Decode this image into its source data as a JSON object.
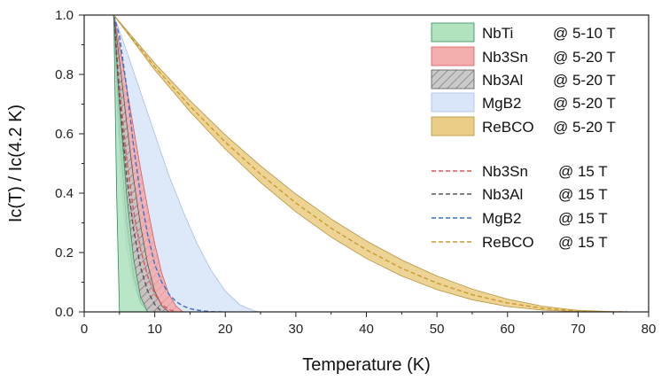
{
  "chart_data": {
    "type": "area",
    "xlabel": "Temperature (K)",
    "ylabel": "Ic(T) / Ic(4.2 K)",
    "xlim": [
      0,
      80
    ],
    "ylim": [
      0,
      1.0
    ],
    "x_ticks": [
      0,
      10,
      20,
      30,
      40,
      50,
      60,
      70,
      80
    ],
    "y_ticks": [
      0.0,
      0.2,
      0.4,
      0.6,
      0.8,
      1.0
    ],
    "grid": false,
    "legend_position": "top-right",
    "bands": [
      {
        "name": "NbTi",
        "condition": "@ 5-10 T",
        "fill": "#a8e0b8",
        "stroke": "#2e8b57",
        "hatch": false,
        "lower": {
          "x": [
            4.2,
            4.6,
            5.0
          ],
          "y": [
            1.0,
            0.4,
            0.0
          ]
        },
        "upper": {
          "x": [
            4.2,
            5.0,
            6.0,
            7.0,
            8.0,
            9.0
          ],
          "y": [
            1.0,
            0.7,
            0.4,
            0.18,
            0.05,
            0.0
          ]
        }
      },
      {
        "name": "Nb3Sn",
        "condition": "@ 5-20 T",
        "fill": "#f4a5a5",
        "stroke": "#d85a5a",
        "hatch": false,
        "lower": {
          "x": [
            4.2,
            5.0,
            6.0,
            7.0,
            8.0,
            9.0,
            10.0,
            11.0
          ],
          "y": [
            1.0,
            0.6,
            0.3,
            0.13,
            0.05,
            0.015,
            0.002,
            0.0
          ]
        },
        "upper": {
          "x": [
            4.2,
            5.0,
            6.0,
            7.0,
            8.0,
            9.0,
            10.0,
            11.0,
            12.0,
            13.0,
            14.0
          ],
          "y": [
            1.0,
            0.9,
            0.76,
            0.62,
            0.48,
            0.35,
            0.23,
            0.13,
            0.06,
            0.02,
            0.0
          ]
        }
      },
      {
        "name": "Nb3Al",
        "condition": "@ 5-20 T",
        "fill": "#b8b8b8",
        "stroke": "#555555",
        "hatch": true,
        "lower": {
          "x": [
            4.2,
            5.0,
            6.0,
            7.0,
            8.0,
            9.0
          ],
          "y": [
            1.0,
            0.6,
            0.3,
            0.12,
            0.03,
            0.0
          ]
        },
        "upper": {
          "x": [
            4.2,
            5.0,
            6.0,
            7.0,
            8.0,
            9.0,
            10.0,
            11.0,
            12.0
          ],
          "y": [
            1.0,
            0.85,
            0.64,
            0.45,
            0.29,
            0.16,
            0.07,
            0.02,
            0.0
          ]
        }
      },
      {
        "name": "MgB2",
        "condition": "@ 5-20 T",
        "fill": "#d5e2f7",
        "stroke": "#a8bde8",
        "hatch": false,
        "lower": {
          "x": [
            4.2,
            5.0,
            6.0,
            7.0,
            8.0,
            9.0,
            10.0
          ],
          "y": [
            1.0,
            0.5,
            0.22,
            0.09,
            0.03,
            0.008,
            0.0
          ]
        },
        "upper": {
          "x": [
            4.2,
            6.0,
            8.0,
            10.0,
            12.0,
            14.0,
            16.0,
            18.0,
            20.0,
            22.0,
            24.0,
            25.0
          ],
          "y": [
            1.0,
            0.88,
            0.74,
            0.6,
            0.46,
            0.34,
            0.23,
            0.14,
            0.07,
            0.025,
            0.004,
            0.0
          ]
        }
      },
      {
        "name": "ReBCO",
        "condition": "@ 5-20 T",
        "fill": "#e8c97a",
        "stroke": "#b89440",
        "hatch": false,
        "lower": {
          "x": [
            4.2,
            10,
            15,
            20,
            25,
            30,
            35,
            40,
            45,
            50,
            55,
            60,
            65,
            70,
            75
          ],
          "y": [
            1.0,
            0.815,
            0.675,
            0.548,
            0.436,
            0.337,
            0.252,
            0.18,
            0.121,
            0.075,
            0.041,
            0.018,
            0.006,
            0.001,
            0.0
          ]
        },
        "upper": {
          "x": [
            4.2,
            10,
            15,
            20,
            25,
            30,
            35,
            40,
            45,
            50,
            55,
            60,
            65,
            70,
            75,
            78
          ],
          "y": [
            1.0,
            0.838,
            0.712,
            0.596,
            0.492,
            0.397,
            0.313,
            0.239,
            0.175,
            0.121,
            0.077,
            0.043,
            0.019,
            0.005,
            0.001,
            0.0
          ]
        }
      }
    ],
    "series": [
      {
        "name": "Nb3Sn",
        "condition": "@ 15 T",
        "color": "#e05555",
        "x": [
          4.2,
          5,
          6,
          7,
          8,
          9,
          10,
          11,
          12,
          13
        ],
        "y": [
          1.0,
          0.76,
          0.52,
          0.34,
          0.21,
          0.12,
          0.06,
          0.025,
          0.008,
          0.0
        ]
      },
      {
        "name": "Nb3Al",
        "condition": "@ 15 T",
        "color": "#555555",
        "x": [
          4.2,
          5,
          6,
          7,
          8,
          9,
          10,
          11
        ],
        "y": [
          1.0,
          0.72,
          0.46,
          0.28,
          0.15,
          0.07,
          0.025,
          0.0
        ]
      },
      {
        "name": "MgB2",
        "condition": "@ 15 T",
        "color": "#3a6fd0",
        "x": [
          4.2,
          5,
          6,
          7,
          8,
          9,
          10,
          11,
          12,
          13,
          14,
          15,
          16,
          17,
          18,
          19,
          20
        ],
        "y": [
          1.0,
          0.93,
          0.76,
          0.56,
          0.39,
          0.26,
          0.16,
          0.1,
          0.06,
          0.035,
          0.02,
          0.011,
          0.006,
          0.003,
          0.001,
          0.0,
          0.0
        ]
      },
      {
        "name": "ReBCO",
        "condition": "@ 15 T",
        "color": "#c99a2e",
        "x": [
          4.2,
          10,
          15,
          20,
          25,
          30,
          35,
          40,
          45,
          50,
          55,
          60,
          65,
          70,
          75,
          77
        ],
        "y": [
          1.0,
          0.826,
          0.693,
          0.572,
          0.464,
          0.367,
          0.282,
          0.209,
          0.147,
          0.097,
          0.058,
          0.03,
          0.012,
          0.003,
          0.0,
          0.0
        ]
      }
    ],
    "legend": {
      "bands": [
        {
          "label": "NbTi",
          "condition": "@ 5-10 T"
        },
        {
          "label": "Nb3Sn",
          "condition": "@ 5-20 T"
        },
        {
          "label": "Nb3Al",
          "condition": "@ 5-20 T"
        },
        {
          "label": "MgB2",
          "condition": "@ 5-20 T"
        },
        {
          "label": "ReBCO",
          "condition": "@ 5-20 T"
        }
      ],
      "lines": [
        {
          "label": "Nb3Sn",
          "condition": "@ 15 T"
        },
        {
          "label": "Nb3Al",
          "condition": "@ 15 T"
        },
        {
          "label": "MgB2",
          "condition": "@ 15 T"
        },
        {
          "label": "ReBCO",
          "condition": "@ 15 T"
        }
      ]
    }
  }
}
